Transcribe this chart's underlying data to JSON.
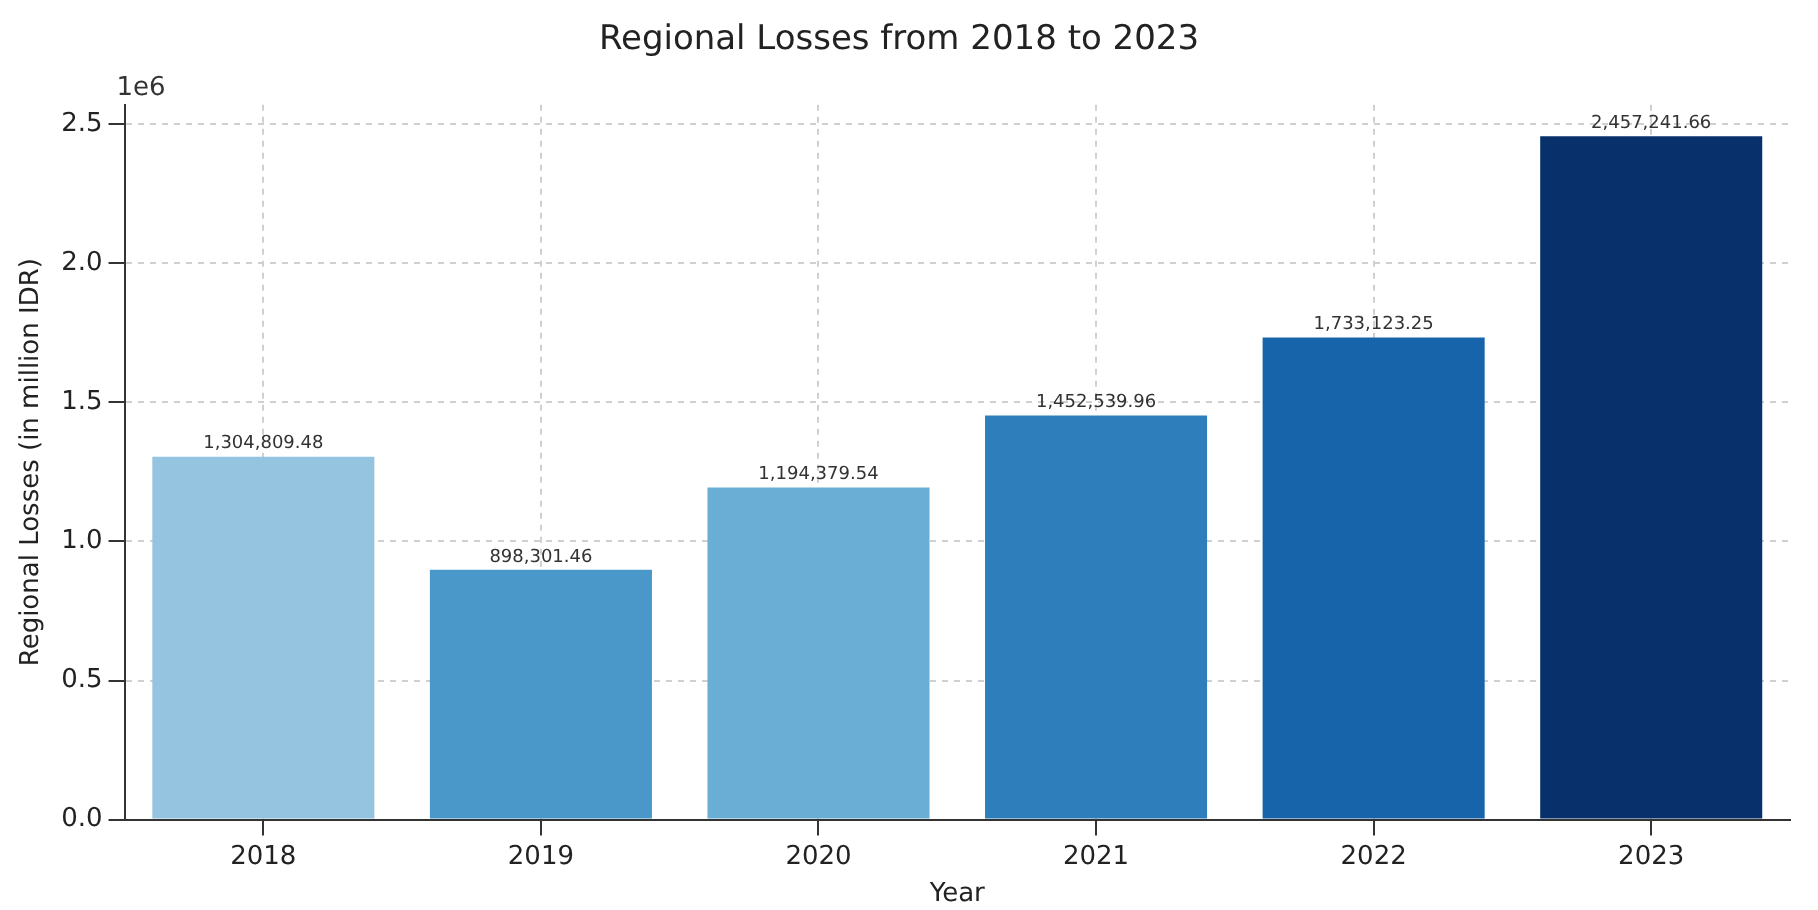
{
  "chart_data": {
    "type": "bar",
    "title": "Regional Losses from 2018 to 2023",
    "xlabel": "Year",
    "ylabel": "Regional Losses (in million IDR)",
    "categories": [
      "2018",
      "2019",
      "2020",
      "2021",
      "2022",
      "2023"
    ],
    "values": [
      1.305,
      0.898,
      1.194,
      1.453,
      1.733,
      2.457
    ],
    "colors": [
      "#94c4df",
      "#4a98c9",
      "#6aaed6",
      "#2e7ebc",
      "#1864aa",
      "#08306b"
    ],
    "ylim": [
      0,
      2.57
    ],
    "yticks": [
      {
        "value": 0,
        "label": "0.0"
      },
      0.5,
      {
        "value": 1,
        "label": "1.0"
      },
      1.5,
      {
        "value": 2,
        "label": "2.0"
      },
      2.5
    ],
    "annotations": [
      "1e6",
      {
        "text": "1,304,809.48",
        "x": "2018",
        "y": 1.305
      },
      {
        "text": "898,301.46",
        "x": "2019",
        "y": 0.898
      },
      {
        "text": "1,194,379.54",
        "x": "2020",
        "y": 1.194
      },
      {
        "text": "1,452,539.96",
        "x": "2021",
        "y": 1.453
      },
      {
        "text": "1,733,123.25",
        "x": "2022",
        "y": 1.733
      },
      {
        "text": "2,457,241.66",
        "x": "2023",
        "y": 2.457
      }
    ],
    "grid": true
  }
}
